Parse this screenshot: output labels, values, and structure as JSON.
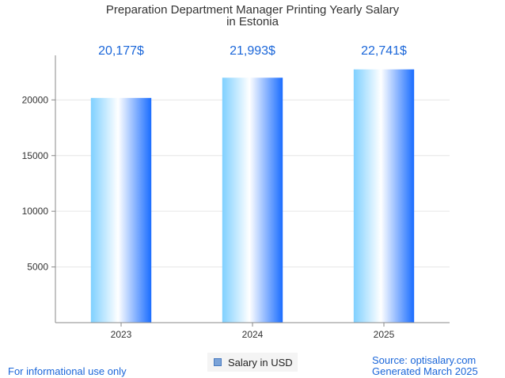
{
  "chart_data": {
    "type": "bar",
    "title_lines": [
      "Preparation Department Manager Printing Yearly Salary",
      "in Estonia"
    ],
    "categories": [
      "2023",
      "2024",
      "2025"
    ],
    "series": [
      {
        "name": "Salary in USD",
        "values": [
          20177,
          21993,
          22741
        ],
        "value_labels": [
          "20,177$",
          "21,993$",
          "22,741$"
        ]
      }
    ],
    "y_ticks": [
      5000,
      10000,
      15000,
      20000
    ],
    "ylim": [
      0,
      24000
    ],
    "grid": true,
    "legend_position": "bottom-center"
  },
  "footer": {
    "disclaimer": "For informational use only",
    "source": "Source: optisalary.com",
    "generated": "Generated March 2025"
  },
  "colors": {
    "label_blue": "#1a66d9",
    "bar_dark": "#1a6dff",
    "bar_light": "#7fd0ff",
    "axis": "#888888",
    "grid": "#e6e6e6"
  }
}
